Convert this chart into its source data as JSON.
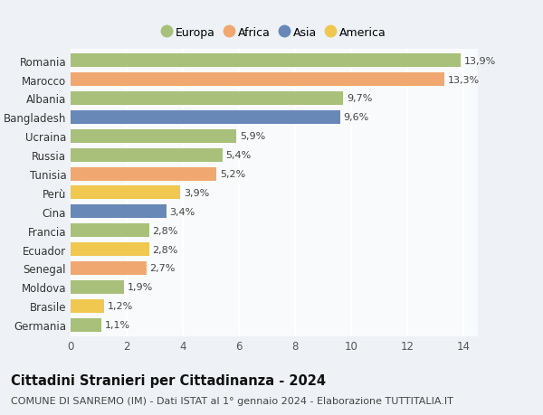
{
  "categories": [
    "Romania",
    "Marocco",
    "Albania",
    "Bangladesh",
    "Ucraina",
    "Russia",
    "Tunisia",
    "Perù",
    "Cina",
    "Francia",
    "Ecuador",
    "Senegal",
    "Moldova",
    "Brasile",
    "Germania"
  ],
  "values": [
    13.9,
    13.3,
    9.7,
    9.6,
    5.9,
    5.4,
    5.2,
    3.9,
    3.4,
    2.8,
    2.8,
    2.7,
    1.9,
    1.2,
    1.1
  ],
  "continents": [
    "Europa",
    "Africa",
    "Europa",
    "Asia",
    "Europa",
    "Europa",
    "Africa",
    "America",
    "Asia",
    "Europa",
    "America",
    "Africa",
    "Europa",
    "America",
    "Europa"
  ],
  "continent_colors": {
    "Europa": "#a8c07a",
    "Africa": "#f0a870",
    "Asia": "#6888b8",
    "America": "#f0c850"
  },
  "legend_order": [
    "Europa",
    "Africa",
    "Asia",
    "America"
  ],
  "labels": [
    "13,9%",
    "13,3%",
    "9,7%",
    "9,6%",
    "5,9%",
    "5,4%",
    "5,2%",
    "3,9%",
    "3,4%",
    "2,8%",
    "2,8%",
    "2,7%",
    "1,9%",
    "1,2%",
    "1,1%"
  ],
  "title": "Cittadini Stranieri per Cittadinanza - 2024",
  "subtitle": "COMUNE DI SANREMO (IM) - Dati ISTAT al 1° gennaio 2024 - Elaborazione TUTTITALIA.IT",
  "xlim": [
    0,
    14.5
  ],
  "xticks": [
    0,
    2,
    4,
    6,
    8,
    10,
    12,
    14
  ],
  "background_color": "#eef2f7",
  "plot_background": "#f8fafc",
  "grid_color": "#ffffff",
  "title_fontsize": 10.5,
  "subtitle_fontsize": 8,
  "label_fontsize": 8,
  "tick_fontsize": 8.5,
  "bar_height": 0.72
}
